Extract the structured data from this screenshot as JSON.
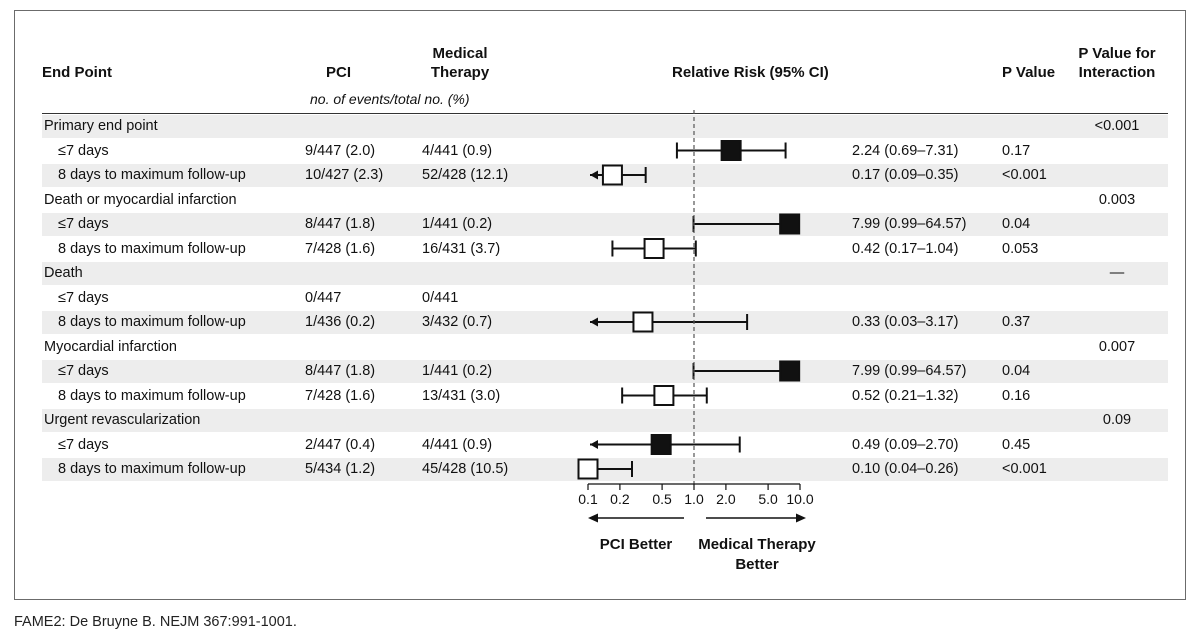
{
  "headers": {
    "end_point": "End Point",
    "pci": "PCI",
    "medical_line1": "Medical",
    "medical_line2": "Therapy",
    "events_note": "no. of events/total no. (%)",
    "relative_risk": "Relative Risk (95% CI)",
    "p_value": "P Value",
    "p_interaction_line1": "P Value for",
    "p_interaction_line2": "Interaction"
  },
  "axis_ticks": [
    "0.1",
    "0.2",
    "0.5",
    "1.0",
    "2.0",
    "5.0",
    "10.0"
  ],
  "better_labels": {
    "pci": "PCI Better",
    "medical_line1": "Medical Therapy",
    "medical_line2": "Better"
  },
  "footer": "FAME2: De Bruyne B. NEJM 367:991-1001.",
  "chart_data": {
    "type": "forest",
    "xscale": "log",
    "xlim": [
      0.1,
      10.0
    ],
    "reference_line": 1.0,
    "rows": [
      {
        "label": "Primary end point",
        "kind": "group",
        "pci": "",
        "med": "",
        "rr_text": "",
        "p": "",
        "p_int": "<0.001"
      },
      {
        "label": "≤7 days",
        "kind": "early",
        "pci": "9/447 (2.0)",
        "med": "4/441 (0.9)",
        "rr": 2.24,
        "lo": 0.69,
        "hi": 7.31,
        "rr_text": "2.24 (0.69–7.31)",
        "p": "0.17",
        "p_int": ""
      },
      {
        "label": "8 days to maximum follow-up",
        "kind": "late",
        "pci": "10/427 (2.3)",
        "med": "52/428 (12.1)",
        "rr": 0.17,
        "lo": 0.09,
        "hi": 0.35,
        "rr_text": "0.17 (0.09–0.35)",
        "p": "<0.001",
        "p_int": ""
      },
      {
        "label": "Death or myocardial infarction",
        "kind": "group",
        "pci": "",
        "med": "",
        "rr_text": "",
        "p": "",
        "p_int": "0.003"
      },
      {
        "label": "≤7 days",
        "kind": "early",
        "pci": "8/447 (1.8)",
        "med": "1/441 (0.2)",
        "rr": 7.99,
        "lo": 0.99,
        "hi": 64.57,
        "rr_text": "7.99 (0.99–64.57)",
        "p": "0.04",
        "p_int": ""
      },
      {
        "label": "8 days to maximum follow-up",
        "kind": "late",
        "pci": "7/428 (1.6)",
        "med": "16/431 (3.7)",
        "rr": 0.42,
        "lo": 0.17,
        "hi": 1.04,
        "rr_text": "0.42 (0.17–1.04)",
        "p": "0.053",
        "p_int": ""
      },
      {
        "label": "Death",
        "kind": "group",
        "pci": "",
        "med": "",
        "rr_text": "",
        "p": "",
        "p_int": "—"
      },
      {
        "label": "≤7 days",
        "kind": "early",
        "pci": "0/447",
        "med": "0/441",
        "rr_text": "",
        "p": "",
        "p_int": ""
      },
      {
        "label": "8 days to maximum follow-up",
        "kind": "late",
        "pci": "1/436 (0.2)",
        "med": "3/432 (0.7)",
        "rr": 0.33,
        "lo": 0.03,
        "hi": 3.17,
        "rr_text": "0.33 (0.03–3.17)",
        "p": "0.37",
        "p_int": ""
      },
      {
        "label": "Myocardial infarction",
        "kind": "group",
        "pci": "",
        "med": "",
        "rr_text": "",
        "p": "",
        "p_int": "0.007"
      },
      {
        "label": "≤7 days",
        "kind": "early",
        "pci": "8/447 (1.8)",
        "med": "1/441 (0.2)",
        "rr": 7.99,
        "lo": 0.99,
        "hi": 64.57,
        "rr_text": "7.99 (0.99–64.57)",
        "p": "0.04",
        "p_int": ""
      },
      {
        "label": "8 days to maximum follow-up",
        "kind": "late",
        "pci": "7/428 (1.6)",
        "med": "13/431 (3.0)",
        "rr": 0.52,
        "lo": 0.21,
        "hi": 1.32,
        "rr_text": "0.52 (0.21–1.32)",
        "p": "0.16",
        "p_int": ""
      },
      {
        "label": "Urgent revascularization",
        "kind": "group",
        "pci": "",
        "med": "",
        "rr_text": "",
        "p": "",
        "p_int": "0.09"
      },
      {
        "label": "≤7 days",
        "kind": "early",
        "pci": "2/447 (0.4)",
        "med": "4/441 (0.9)",
        "rr": 0.49,
        "lo": 0.09,
        "hi": 2.7,
        "rr_text": "0.49 (0.09–2.70)",
        "p": "0.45",
        "p_int": ""
      },
      {
        "label": "8 days to maximum follow-up",
        "kind": "late",
        "pci": "5/434 (1.2)",
        "med": "45/428 (10.5)",
        "rr": 0.1,
        "lo": 0.04,
        "hi": 0.26,
        "rr_text": "0.10 (0.04–0.26)",
        "p": "<0.001",
        "p_int": ""
      }
    ],
    "marker_colors": {
      "early": "#111111",
      "late": "#ffffff"
    }
  }
}
